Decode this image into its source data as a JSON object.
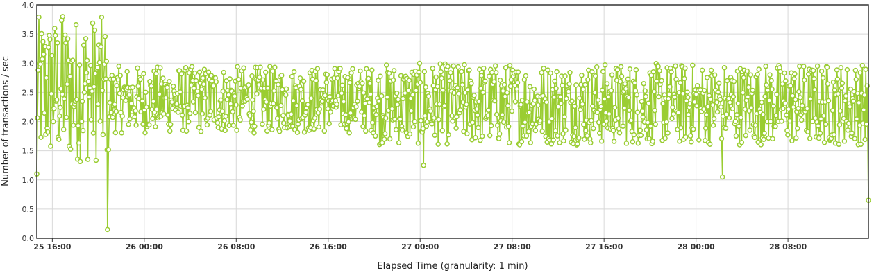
{
  "chart_data": {
    "type": "line",
    "title": "",
    "xlabel": "Elapsed Time (granularity: 1 min)",
    "ylabel": "Number of transactions / sec",
    "ylim": [
      0,
      4
    ],
    "yticks": [
      "0.0",
      "0.5",
      "1.0",
      "1.5",
      "2.0",
      "2.5",
      "3.0",
      "3.5",
      "4.0"
    ],
    "xlim_hours_note": "",
    "xticks": [
      {
        "hour": 16,
        "label": "25 16:00"
      },
      {
        "hour": 24,
        "label": "26 00:00"
      },
      {
        "hour": 32,
        "label": "26 08:00"
      },
      {
        "hour": 40,
        "label": "26 16:00"
      },
      {
        "hour": 48,
        "label": "27 00:00"
      },
      {
        "hour": 56,
        "label": "27 08:00"
      },
      {
        "hour": 64,
        "label": "27 16:00"
      },
      {
        "hour": 72,
        "label": "28 00:00"
      },
      {
        "hour": 80,
        "label": "28 08:00"
      }
    ],
    "x_range_hours": [
      14.65,
      87.0
    ],
    "grid": true,
    "legend": "none",
    "series": [
      {
        "color": "#9acd32",
        "marker": "circle",
        "baseline_phases": [
          {
            "from_hour": 14.65,
            "to_hour": 20.9,
            "low": 1.3,
            "high": 3.8
          },
          {
            "from_hour": 20.9,
            "to_hour": 44.0,
            "low": 1.8,
            "high": 2.95
          },
          {
            "from_hour": 44.0,
            "to_hour": 87.0,
            "low": 1.6,
            "high": 3.0
          }
        ],
        "notable_points": [
          {
            "hour": 14.65,
            "value": 1.1
          },
          {
            "hour": 16.9,
            "value": 3.8
          },
          {
            "hour": 20.8,
            "value": 0.15
          },
          {
            "hour": 48.3,
            "value": 1.25
          },
          {
            "hour": 74.3,
            "value": 1.05
          },
          {
            "hour": 87.0,
            "value": 0.65
          }
        ]
      }
    ]
  }
}
